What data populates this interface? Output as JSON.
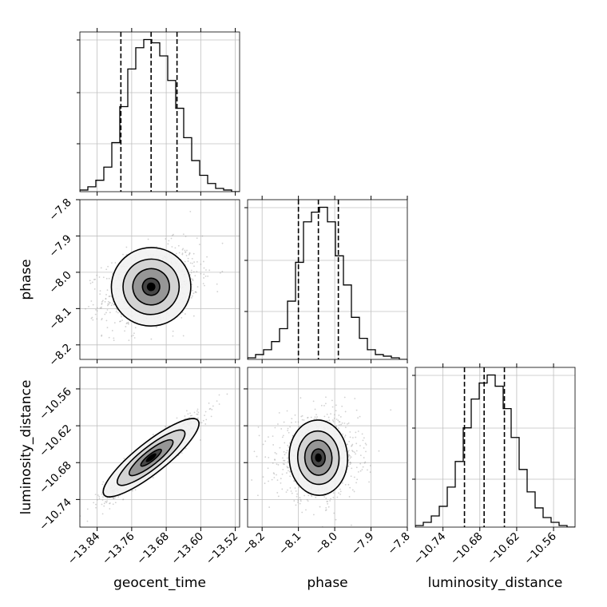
{
  "chart_data": {
    "type": "corner",
    "parameters": [
      "geocent_time",
      "phase",
      "luminosity_distance"
    ],
    "axis_labels": {
      "x": [
        "geocent_time",
        "phase",
        "luminosity_distance"
      ],
      "y": [
        "",
        "phase",
        "luminosity_distance"
      ]
    },
    "grid": true,
    "quantile_lines": {
      "geocent_time": [
        -13.785,
        -13.715,
        -13.655
      ],
      "phase": [
        -8.1,
        -8.045,
        -7.99
      ],
      "luminosity_distance": [
        -10.705,
        -10.673,
        -10.64
      ]
    },
    "ranges": {
      "geocent_time": [
        -13.88,
        -13.51
      ],
      "phase": [
        -8.24,
        -7.8
      ],
      "luminosity_distance": [
        -10.785,
        -10.525
      ]
    },
    "ticks": {
      "geocent_time": [
        -13.84,
        -13.76,
        -13.68,
        -13.6,
        -13.52
      ],
      "phase": [
        -8.2,
        -8.1,
        -8.0,
        -7.9,
        -7.8
      ],
      "luminosity_distance": [
        -10.74,
        -10.68,
        -10.62,
        -10.56
      ]
    },
    "tick_labels": {
      "geocent_time": [
        "−13.84",
        "−13.76",
        "−13.68",
        "−13.60",
        "−13.52"
      ],
      "phase": [
        "−8.2",
        "−8.1",
        "−8.0",
        "−7.9",
        "−7.8"
      ],
      "luminosity_distance": [
        "−10.74",
        "−10.68",
        "−10.62",
        "−10.56"
      ]
    },
    "histograms": {
      "geocent_time": {
        "bin_edges": [
          -13.88,
          -13.8615,
          -13.843,
          -13.8245,
          -13.806,
          -13.7875,
          -13.769,
          -13.7505,
          -13.732,
          -13.7135,
          -13.695,
          -13.6765,
          -13.658,
          -13.6395,
          -13.621,
          -13.6025,
          -13.584,
          -13.5655,
          -13.547,
          -13.5285,
          -13.51
        ],
        "counts": [
          0.01,
          0.03,
          0.07,
          0.15,
          0.3,
          0.52,
          0.75,
          0.88,
          0.93,
          0.91,
          0.83,
          0.68,
          0.51,
          0.33,
          0.19,
          0.1,
          0.05,
          0.02,
          0.01,
          0.0
        ]
      },
      "phase": {
        "bin_edges": [
          -8.24,
          -8.218,
          -8.196,
          -8.174,
          -8.152,
          -8.13,
          -8.108,
          -8.086,
          -8.064,
          -8.042,
          -8.02,
          -7.998,
          -7.976,
          -7.954,
          -7.932,
          -7.91,
          -7.888,
          -7.866,
          -7.844,
          -7.822,
          -7.8
        ],
        "counts": [
          0.01,
          0.03,
          0.06,
          0.11,
          0.19,
          0.36,
          0.6,
          0.85,
          0.91,
          0.94,
          0.85,
          0.64,
          0.46,
          0.26,
          0.13,
          0.06,
          0.03,
          0.02,
          0.01,
          0.0
        ]
      },
      "luminosity_distance": {
        "bin_edges": [
          -10.785,
          -10.772,
          -10.759,
          -10.746,
          -10.733,
          -10.72,
          -10.707,
          -10.694,
          -10.681,
          -10.668,
          -10.655,
          -10.642,
          -10.629,
          -10.616,
          -10.603,
          -10.59,
          -10.577,
          -10.564,
          -10.551,
          -10.538,
          -10.525
        ],
        "counts": [
          0.01,
          0.03,
          0.07,
          0.13,
          0.25,
          0.41,
          0.62,
          0.8,
          0.9,
          0.95,
          0.88,
          0.74,
          0.56,
          0.36,
          0.22,
          0.12,
          0.06,
          0.03,
          0.01,
          0.0
        ]
      }
    },
    "pairs": [
      {
        "x": "geocent_time",
        "y": "phase",
        "mean": [
          -13.715,
          -8.04
        ],
        "sd": [
          0.055,
          0.055
        ],
        "corr": 0.3,
        "contours": [
          [
            0.018,
            0.02
          ],
          [
            0.04,
            0.04
          ],
          [
            0.062,
            0.06
          ],
          [
            0.088,
            0.085
          ]
        ]
      },
      {
        "x": "geocent_time",
        "y": "luminosity_distance",
        "mean": [
          -13.715,
          -10.672
        ],
        "sd": [
          0.055,
          0.033
        ],
        "corr": 0.93,
        "contours": [
          [
            0.018,
            0.012
          ],
          [
            0.04,
            0.024
          ],
          [
            0.062,
            0.037
          ],
          [
            0.088,
            0.052
          ]
        ]
      },
      {
        "x": "phase",
        "y": "luminosity_distance",
        "mean": [
          -8.045,
          -10.672
        ],
        "sd": [
          0.055,
          0.033
        ],
        "corr": 0.05,
        "contours": [
          [
            0.02,
            0.012
          ],
          [
            0.04,
            0.024
          ],
          [
            0.06,
            0.037
          ],
          [
            0.085,
            0.052
          ]
        ]
      }
    ],
    "scatter_points_per_panel": 1100,
    "colors": {
      "line": "#000000",
      "grid": "#c0c0c0",
      "points": "#9a9a9a"
    }
  }
}
